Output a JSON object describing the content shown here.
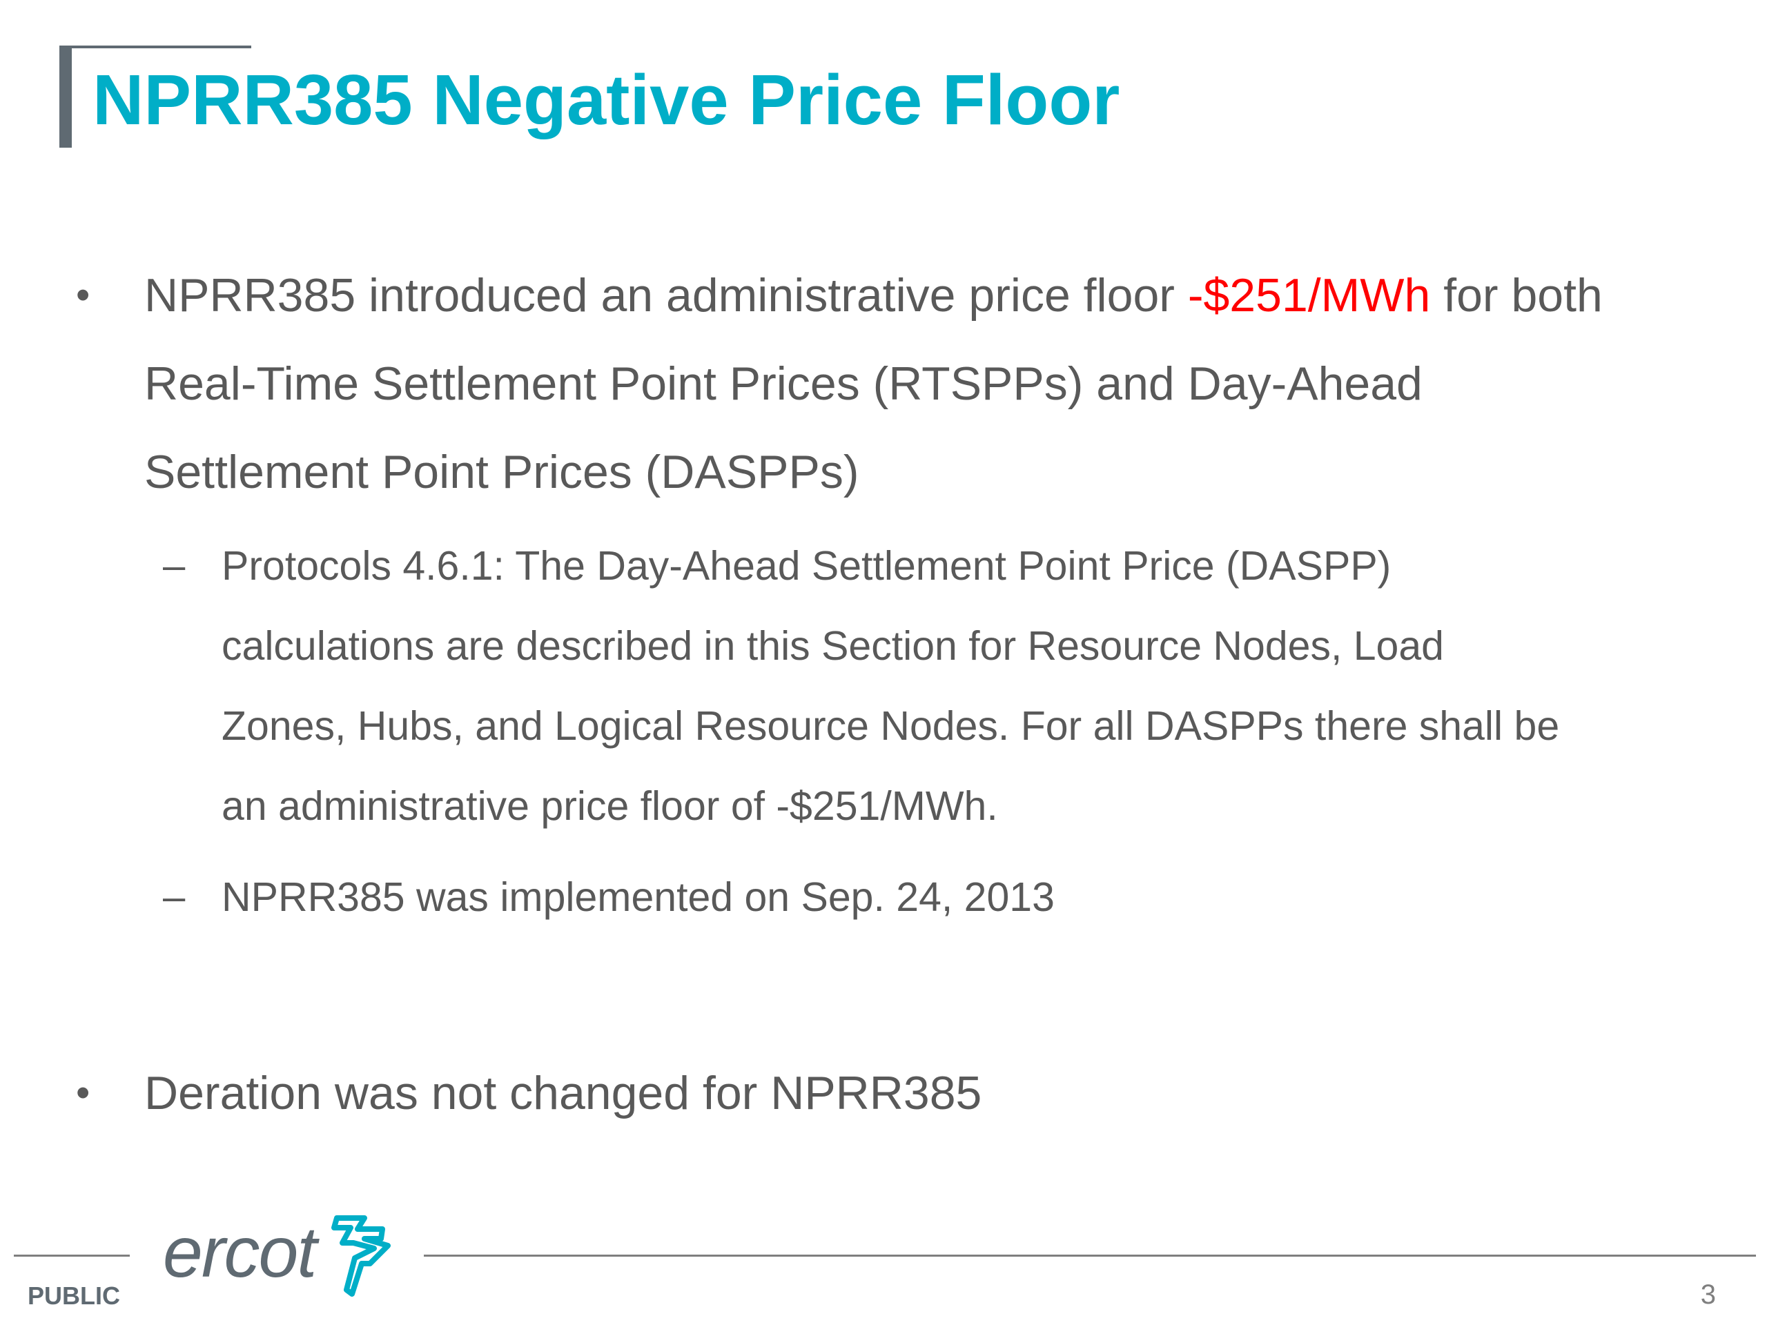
{
  "slide": {
    "title": "NPRR385 Negative Price Floor",
    "bullets": [
      {
        "marker": "•",
        "lines": [
          {
            "before": "NPRR385 introduced an administrative price floor ",
            "highlight": "-$251/MWh",
            "after": " for both"
          },
          "Real-Time Settlement Point Prices (RTSPPs) and Day-Ahead",
          "Settlement Point Prices (DASPPs)"
        ],
        "sub_bullets": [
          {
            "marker": "–",
            "lines": [
              "Protocols 4.6.1: The Day-Ahead Settlement Point Price (DASPP)",
              "calculations are described in this Section for Resource Nodes, Load",
              "Zones, Hubs, and Logical Resource Nodes.  For all DASPPs there shall be",
              "an administrative price floor of -$251/MWh."
            ]
          },
          {
            "marker": "–",
            "lines": [
              "NPRR385 was implemented on Sep. 24, 2013"
            ]
          }
        ]
      },
      {
        "marker": "•",
        "lines": [
          "Deration was not changed for NPRR385"
        ]
      }
    ],
    "highlight_color": "#ff0000",
    "title_color": "#00aec7"
  },
  "footer": {
    "logo_text": "ercot",
    "classification": "PUBLIC",
    "page_number": "3"
  }
}
